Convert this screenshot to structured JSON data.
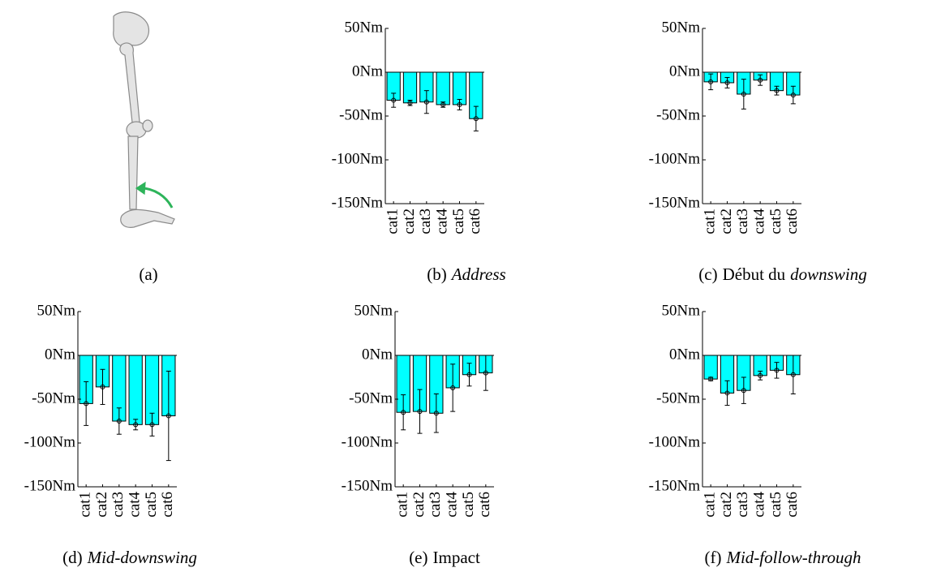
{
  "image_caption": "(a)",
  "chart_data": [
    {
      "type": "bar",
      "caption_label": "(b)",
      "caption": [
        {
          "text": "Address",
          "italic": true
        }
      ],
      "categories": [
        "cat1",
        "cat2",
        "cat3",
        "cat4",
        "cat5",
        "cat6"
      ],
      "values": [
        -32,
        -35,
        -34,
        -37,
        -37,
        -53
      ],
      "errors": [
        8,
        3,
        13,
        3,
        6,
        14
      ],
      "color": "#00ffff",
      "ylim": [
        -150,
        50
      ],
      "yticks": [
        {
          "value": -150,
          "label": "-150Nm"
        },
        {
          "value": -100,
          "label": "-100Nm"
        },
        {
          "value": -50,
          "label": "-50Nm"
        },
        {
          "value": 0,
          "label": "0Nm"
        },
        {
          "value": 50,
          "label": "50Nm"
        }
      ]
    },
    {
      "type": "bar",
      "caption_label": "(c)",
      "caption": [
        {
          "text": "Début du"
        },
        {
          "text": "downswing",
          "italic": true
        }
      ],
      "categories": [
        "cat1",
        "cat2",
        "cat3",
        "cat4",
        "cat5",
        "cat6"
      ],
      "values": [
        -11,
        -12,
        -25,
        -9,
        -21,
        -26
      ],
      "errors": [
        9,
        6,
        17,
        6,
        5,
        10
      ],
      "color": "#00ffff",
      "ylim": [
        -150,
        50
      ],
      "yticks": [
        {
          "value": -150,
          "label": "-150Nm"
        },
        {
          "value": -100,
          "label": "-100Nm"
        },
        {
          "value": -50,
          "label": "-50Nm"
        },
        {
          "value": 0,
          "label": "0Nm"
        },
        {
          "value": 50,
          "label": "50Nm"
        }
      ]
    },
    {
      "type": "bar",
      "caption_label": "(d)",
      "caption": [
        {
          "text": "Mid-downswing",
          "italic": true
        }
      ],
      "categories": [
        "cat1",
        "cat2",
        "cat3",
        "cat4",
        "cat5",
        "cat6"
      ],
      "values": [
        -55,
        -36,
        -75,
        -79,
        -79,
        -69
      ],
      "errors": [
        25,
        20,
        15,
        6,
        13,
        51
      ],
      "color": "#00ffff",
      "ylim": [
        -150,
        50
      ],
      "yticks": [
        {
          "value": -150,
          "label": "-150Nm"
        },
        {
          "value": -100,
          "label": "-100Nm"
        },
        {
          "value": -50,
          "label": "-50Nm"
        },
        {
          "value": 0,
          "label": "0Nm"
        },
        {
          "value": 50,
          "label": "50Nm"
        }
      ]
    },
    {
      "type": "bar",
      "caption_label": "(e)",
      "caption": [
        {
          "text": "Impact"
        }
      ],
      "categories": [
        "cat1",
        "cat2",
        "cat3",
        "cat4",
        "cat5",
        "cat6"
      ],
      "values": [
        -65,
        -64,
        -66,
        -37,
        -22,
        -20
      ],
      "errors": [
        20,
        25,
        22,
        27,
        13,
        20
      ],
      "color": "#00ffff",
      "ylim": [
        -150,
        50
      ],
      "yticks": [
        {
          "value": -150,
          "label": "-150Nm"
        },
        {
          "value": -100,
          "label": "-100Nm"
        },
        {
          "value": -50,
          "label": "-50Nm"
        },
        {
          "value": 0,
          "label": "0Nm"
        },
        {
          "value": 50,
          "label": "50Nm"
        }
      ]
    },
    {
      "type": "bar",
      "caption_label": "(f)",
      "caption": [
        {
          "text": "Mid-follow-through",
          "italic": true
        }
      ],
      "categories": [
        "cat1",
        "cat2",
        "cat3",
        "cat4",
        "cat5",
        "cat6"
      ],
      "values": [
        -27,
        -43,
        -40,
        -23,
        -17,
        -22
      ],
      "errors": [
        2,
        14,
        15,
        5,
        9,
        22
      ],
      "color": "#00ffff",
      "ylim": [
        -150,
        50
      ],
      "yticks": [
        {
          "value": -150,
          "label": "-150Nm"
        },
        {
          "value": -100,
          "label": "-100Nm"
        },
        {
          "value": -50,
          "label": "-50Nm"
        },
        {
          "value": 0,
          "label": "0Nm"
        },
        {
          "value": 50,
          "label": "50Nm"
        }
      ]
    }
  ]
}
